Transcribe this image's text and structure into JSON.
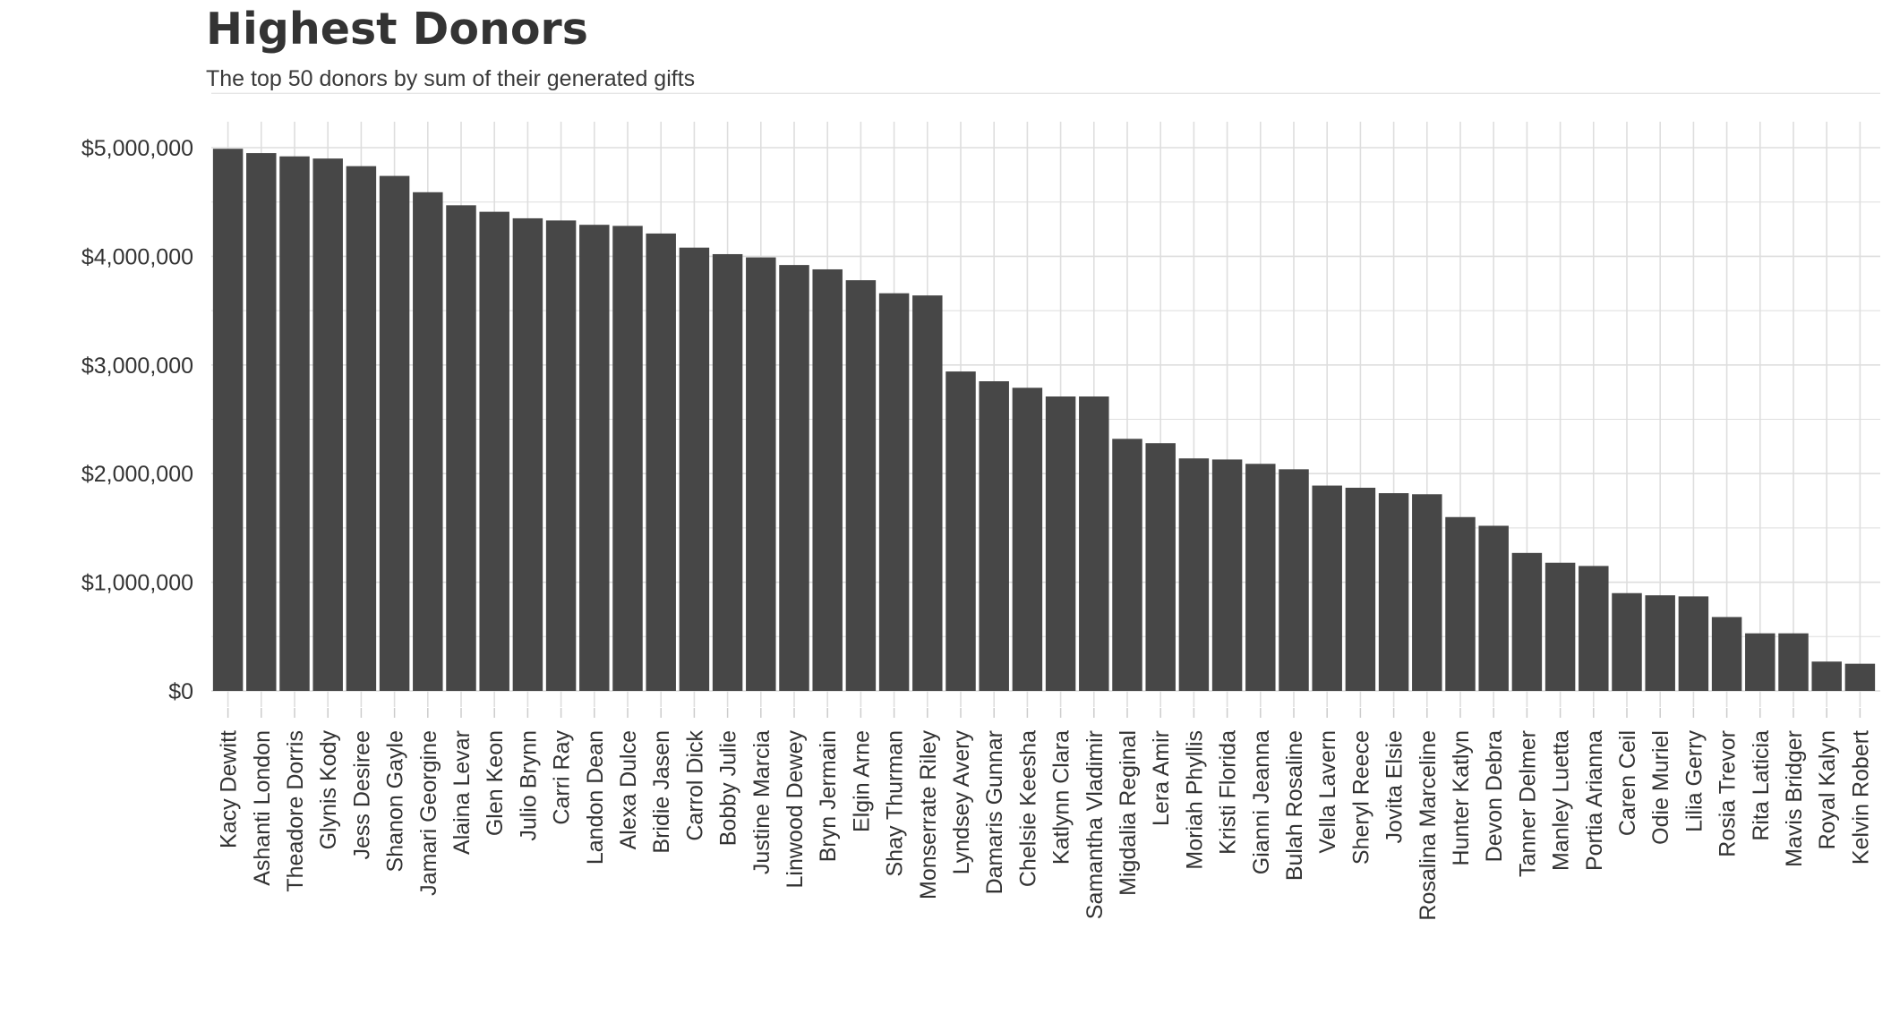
{
  "chart_data": {
    "type": "bar",
    "title": "Highest Donors",
    "subtitle": "The top 50 donors by sum of their generated gifts",
    "xlabel": "",
    "ylabel": "",
    "ylim": [
      0,
      5000000
    ],
    "y_ticks": [
      0,
      1000000,
      2000000,
      3000000,
      4000000,
      5000000
    ],
    "y_tick_labels": [
      "$0",
      "$1,000,000",
      "$2,000,000",
      "$3,000,000",
      "$4,000,000",
      "$5,000,000"
    ],
    "grid": true,
    "legend": "none",
    "bar_color": "#474747",
    "grid_color": "#dedede",
    "categories": [
      "Kacy Dewitt",
      "Ashanti London",
      "Theadore Dorris",
      "Glynis Kody",
      "Jess Desiree",
      "Shanon Gayle",
      "Jamari Georgine",
      "Alaina Levar",
      "Glen Keon",
      "Julio Brynn",
      "Carri Ray",
      "Landon Dean",
      "Alexa Dulce",
      "Bridie Jasen",
      "Carrol Dick",
      "Bobby Julie",
      "Justine Marcia",
      "Linwood Dewey",
      "Bryn Jermain",
      "Elgin Arne",
      "Shay Thurman",
      "Monserrate Riley",
      "Lyndsey Avery",
      "Damaris Gunnar",
      "Chelsie Keesha",
      "Katlynn Clara",
      "Samantha Vladimir",
      "Migdalia Reginal",
      "Lera Amir",
      "Moriah Phyllis",
      "Kristi Florida",
      "Gianni Jeanna",
      "Bulah Rosaline",
      "Vella Lavern",
      "Sheryl Reece",
      "Jovita Elsie",
      "Rosalina Marceline",
      "Hunter Katlyn",
      "Devon Debra",
      "Tanner Delmer",
      "Manley Luetta",
      "Portia Arianna",
      "Caren Ceil",
      "Odie Muriel",
      "Lilia Gerry",
      "Rosia Trevor",
      "Rita Laticia",
      "Mavis Bridger",
      "Royal Kalyn",
      "Kelvin Robert"
    ],
    "values": [
      4990000,
      4950000,
      4920000,
      4900000,
      4830000,
      4740000,
      4590000,
      4470000,
      4410000,
      4350000,
      4330000,
      4290000,
      4280000,
      4210000,
      4080000,
      4020000,
      3990000,
      3920000,
      3880000,
      3780000,
      3660000,
      3640000,
      2940000,
      2850000,
      2790000,
      2710000,
      2710000,
      2320000,
      2280000,
      2140000,
      2130000,
      2090000,
      2040000,
      1890000,
      1870000,
      1820000,
      1810000,
      1600000,
      1520000,
      1270000,
      1180000,
      1150000,
      900000,
      880000,
      870000,
      680000,
      530000,
      530000,
      270000,
      250000
    ]
  }
}
